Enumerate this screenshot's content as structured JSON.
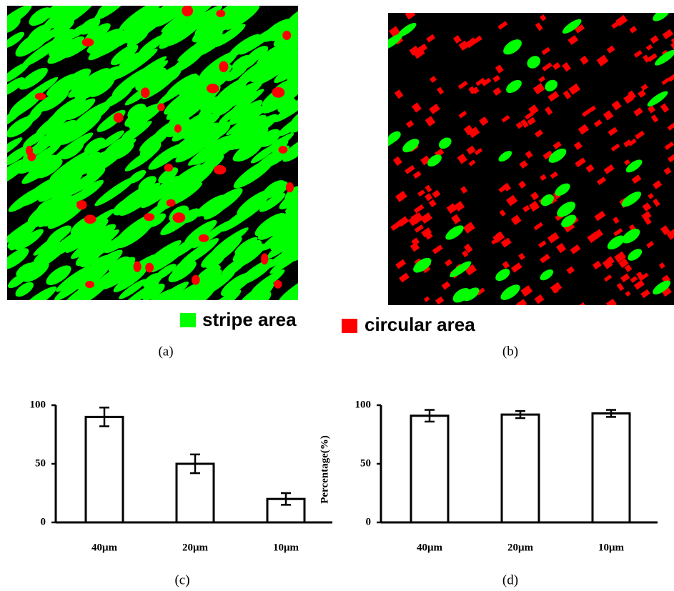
{
  "images": [
    {
      "caption": "(a)"
    },
    {
      "caption": "(b)"
    }
  ],
  "legend": [
    {
      "name": "stripe area",
      "color": "#00ff00"
    },
    {
      "name": "circular area",
      "color": "#ff0000"
    }
  ],
  "chart_data": [
    {
      "type": "bar",
      "caption": "(c)",
      "categories": [
        "40μm",
        "20μm",
        "10μm"
      ],
      "values": [
        90,
        50,
        20
      ],
      "errors": [
        8,
        8,
        5
      ],
      "color": "#ffffff",
      "ylim": [
        0,
        100
      ],
      "yticks": [
        0,
        50,
        100
      ]
    },
    {
      "type": "bar",
      "caption": "(d)",
      "y_label": "Percentage(%)",
      "categories": [
        "40μm",
        "20μm",
        "10μm"
      ],
      "values": [
        91,
        92,
        93
      ],
      "errors": [
        5,
        3,
        3
      ],
      "color": "#ffffff",
      "ylim": [
        0,
        100
      ],
      "yticks": [
        0,
        50,
        100
      ]
    }
  ]
}
